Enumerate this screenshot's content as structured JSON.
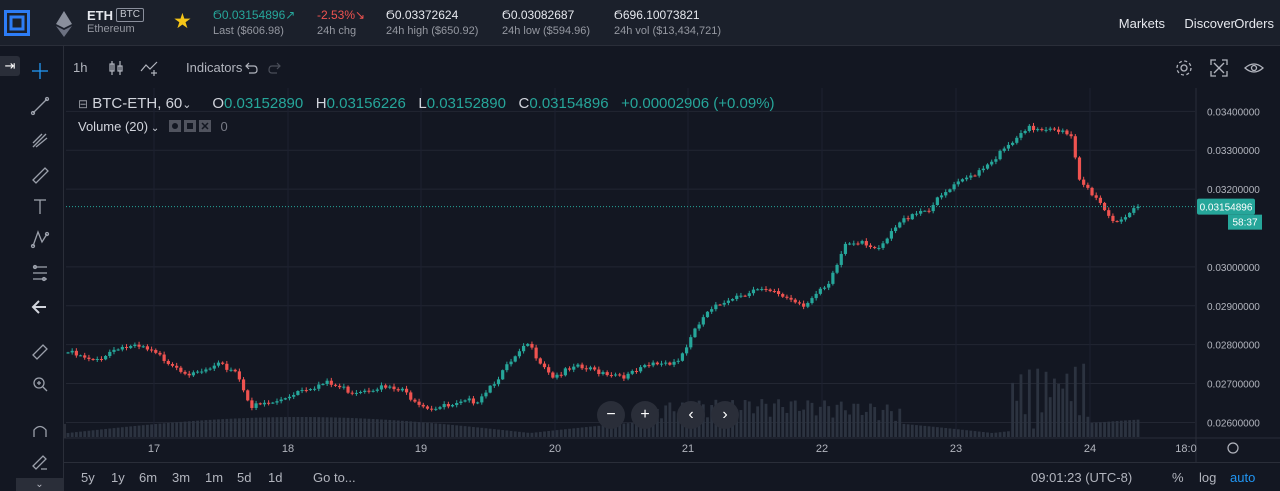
{
  "header": {
    "pair_base": "ETH",
    "pair_quote": "BTC",
    "pair_name": "Ethereum",
    "last_value": "Ϭ0.03154896↗",
    "last_label": "Last  ($606.98)",
    "change_value": "-2.53%↘",
    "change_label": "24h chg",
    "high_value": "Ϭ0.03372624",
    "high_label": "24h high  ($650.92)",
    "low_value": "Ϭ0.03082687",
    "low_label": "24h low  ($594.96)",
    "vol_value": "Ϭ696.10073821",
    "vol_label": "24h vol  ($13,434,721)",
    "nav": [
      "Markets",
      "Discover",
      "Orders"
    ]
  },
  "toolbar": {
    "interval": "1h",
    "indicators": "Indicators"
  },
  "legend": {
    "symbol": "BTC-ETH, 60",
    "open_k": "O",
    "open": "0.03152890",
    "high_k": "H",
    "high": "0.03156226",
    "low_k": "L",
    "low": "0.03152890",
    "close_k": "C",
    "close": "0.03154896",
    "change": "+0.00002906 (+0.09%)",
    "volume": "Volume (20)",
    "volume_value": "0"
  },
  "bottom": {
    "ranges": [
      "5y",
      "1y",
      "6m",
      "3m",
      "1m",
      "5d",
      "1d"
    ],
    "goto": "Go to...",
    "clock": "09:01:23 (UTC-8)",
    "percent": "%",
    "log": "log",
    "auto": "auto"
  },
  "colors": {
    "up": "#26a69a",
    "down": "#ef5350",
    "bg": "#131722",
    "accent": "#2196f3"
  },
  "sidebar_icons": [
    "crosshair-icon",
    "trend-line-icon",
    "pitchfork-icon",
    "brush-icon",
    "text-icon",
    "pattern-icon",
    "prediction-icon",
    "back-arrow-icon",
    "ruler-icon",
    "zoom-in-icon",
    "magnet-icon",
    "lock-draw-icon"
  ],
  "chart_data": {
    "type": "candlestick",
    "title": "BTC-ETH, 60",
    "x_labels": [
      "17",
      "18",
      "19",
      "20",
      "21",
      "22",
      "23",
      "24",
      "18:0"
    ],
    "y_ticks": [
      "0.03400000",
      "0.03300000",
      "0.03200000",
      "0.03000000",
      "0.02900000",
      "0.02800000",
      "0.02700000",
      "0.02600000"
    ],
    "ylim": [
      0.0256,
      0.0346
    ],
    "current_price": "0.03154896",
    "countdown": "58:37",
    "grid": true,
    "path_points": [
      [
        0,
        0.0278
      ],
      [
        6,
        0.02755
      ],
      [
        12,
        0.02795
      ],
      [
        18,
        0.0279
      ],
      [
        24,
        0.02758
      ],
      [
        30,
        0.0272
      ],
      [
        36,
        0.02745
      ],
      [
        40,
        0.02735
      ],
      [
        44,
        0.0264
      ],
      [
        50,
        0.02652
      ],
      [
        56,
        0.02688
      ],
      [
        62,
        0.027
      ],
      [
        68,
        0.0268
      ],
      [
        74,
        0.02692
      ],
      [
        80,
        0.0268
      ],
      [
        86,
        0.0264
      ],
      [
        92,
        0.0264
      ],
      [
        98,
        0.0266
      ],
      [
        104,
        0.0273
      ],
      [
        110,
        0.028
      ],
      [
        116,
        0.0272
      ],
      [
        122,
        0.0274
      ],
      [
        128,
        0.0273
      ],
      [
        134,
        0.0272
      ],
      [
        140,
        0.0275
      ],
      [
        146,
        0.0276
      ],
      [
        152,
        0.0287
      ],
      [
        158,
        0.0292
      ],
      [
        164,
        0.0294
      ],
      [
        170,
        0.0293
      ],
      [
        176,
        0.02905
      ],
      [
        182,
        0.0295
      ],
      [
        186,
        0.0306
      ],
      [
        190,
        0.0307
      ],
      [
        194,
        0.0304
      ],
      [
        198,
        0.031
      ],
      [
        202,
        0.0314
      ],
      [
        206,
        0.0315
      ],
      [
        210,
        0.0319
      ],
      [
        214,
        0.0322
      ],
      [
        218,
        0.0325
      ],
      [
        224,
        0.033
      ],
      [
        230,
        0.03355
      ],
      [
        236,
        0.0336
      ],
      [
        240,
        0.0333
      ],
      [
        242,
        0.0322
      ],
      [
        246,
        0.0318
      ],
      [
        250,
        0.0312
      ],
      [
        254,
        0.0313
      ],
      [
        256,
        0.03154896
      ]
    ]
  }
}
